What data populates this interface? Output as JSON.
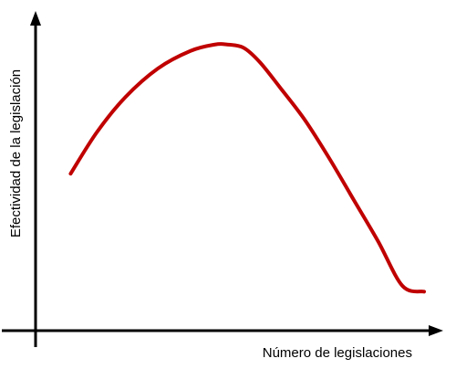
{
  "chart_data": {
    "type": "line",
    "xlabel": "Número de legislaciones",
    "ylabel": "Efectividad de la legislación",
    "title": "",
    "grid": false,
    "legend": "none",
    "axis_ticks": false,
    "xlim": [
      0,
      100
    ],
    "ylim": [
      0,
      100
    ],
    "series": [
      {
        "color": "#c00000",
        "x": [
          8.6,
          15,
          22,
          30,
          38,
          44,
          47,
          51,
          55,
          60,
          66,
          72,
          78,
          84,
          90,
          95.3
        ],
        "y": [
          49.1,
          62,
          73,
          82,
          87.5,
          89.5,
          89.5,
          88.5,
          84,
          76,
          66,
          54,
          41,
          28,
          14,
          12.2
        ]
      }
    ]
  }
}
